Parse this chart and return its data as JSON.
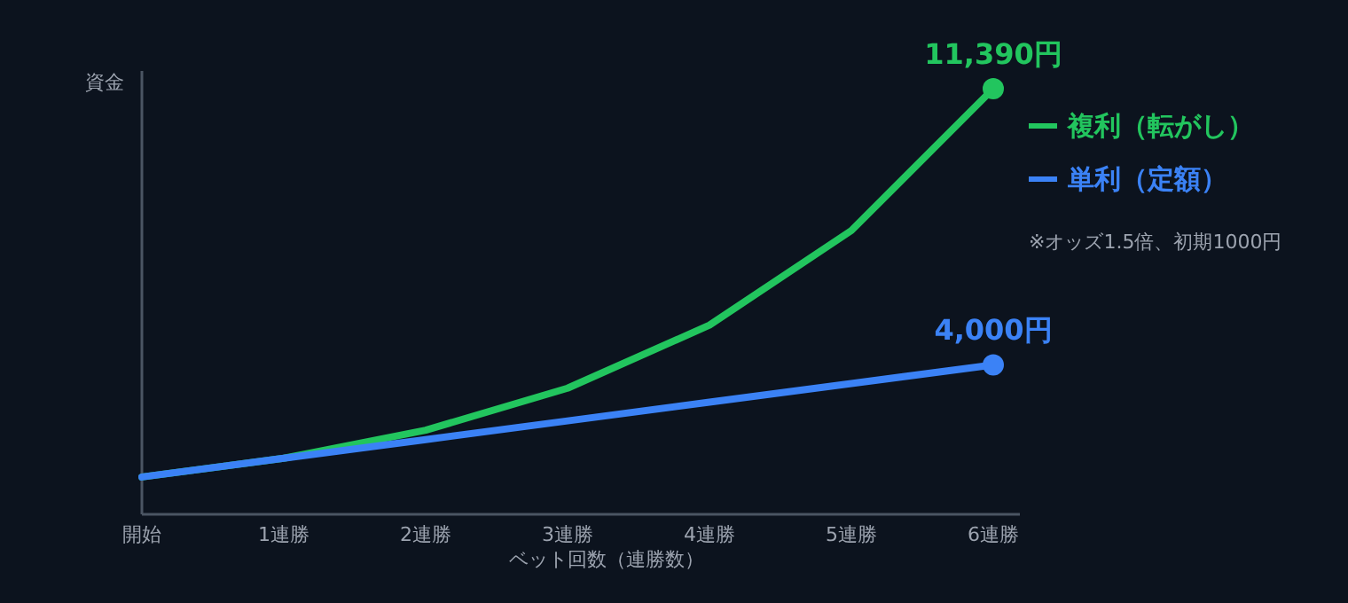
{
  "chart_data": {
    "type": "line",
    "ylabel": "資金",
    "xlabel": "ベット回数（連勝数）",
    "categories": [
      "開始",
      "1連勝",
      "2連勝",
      "3連勝",
      "4連勝",
      "5連勝",
      "6連勝"
    ],
    "ylim": [
      0,
      11865
    ],
    "series": [
      {
        "name": "複利（転がし）",
        "color": "#22c55e",
        "values": [
          1000,
          1500,
          2250,
          3375,
          5062.5,
          7593.75,
          11390
        ],
        "value_labels": [
          null,
          null,
          null,
          null,
          null,
          null,
          "11,390円"
        ]
      },
      {
        "name": "単利（定額）",
        "color": "#3b82f6",
        "values": [
          1000,
          1500,
          2000,
          2500,
          3000,
          3500,
          4000
        ],
        "value_labels": [
          null,
          null,
          null,
          null,
          null,
          null,
          "4,000円"
        ]
      }
    ],
    "legend": "right",
    "annotations": [
      "※オッズ1.5倍、初期1000円"
    ]
  }
}
